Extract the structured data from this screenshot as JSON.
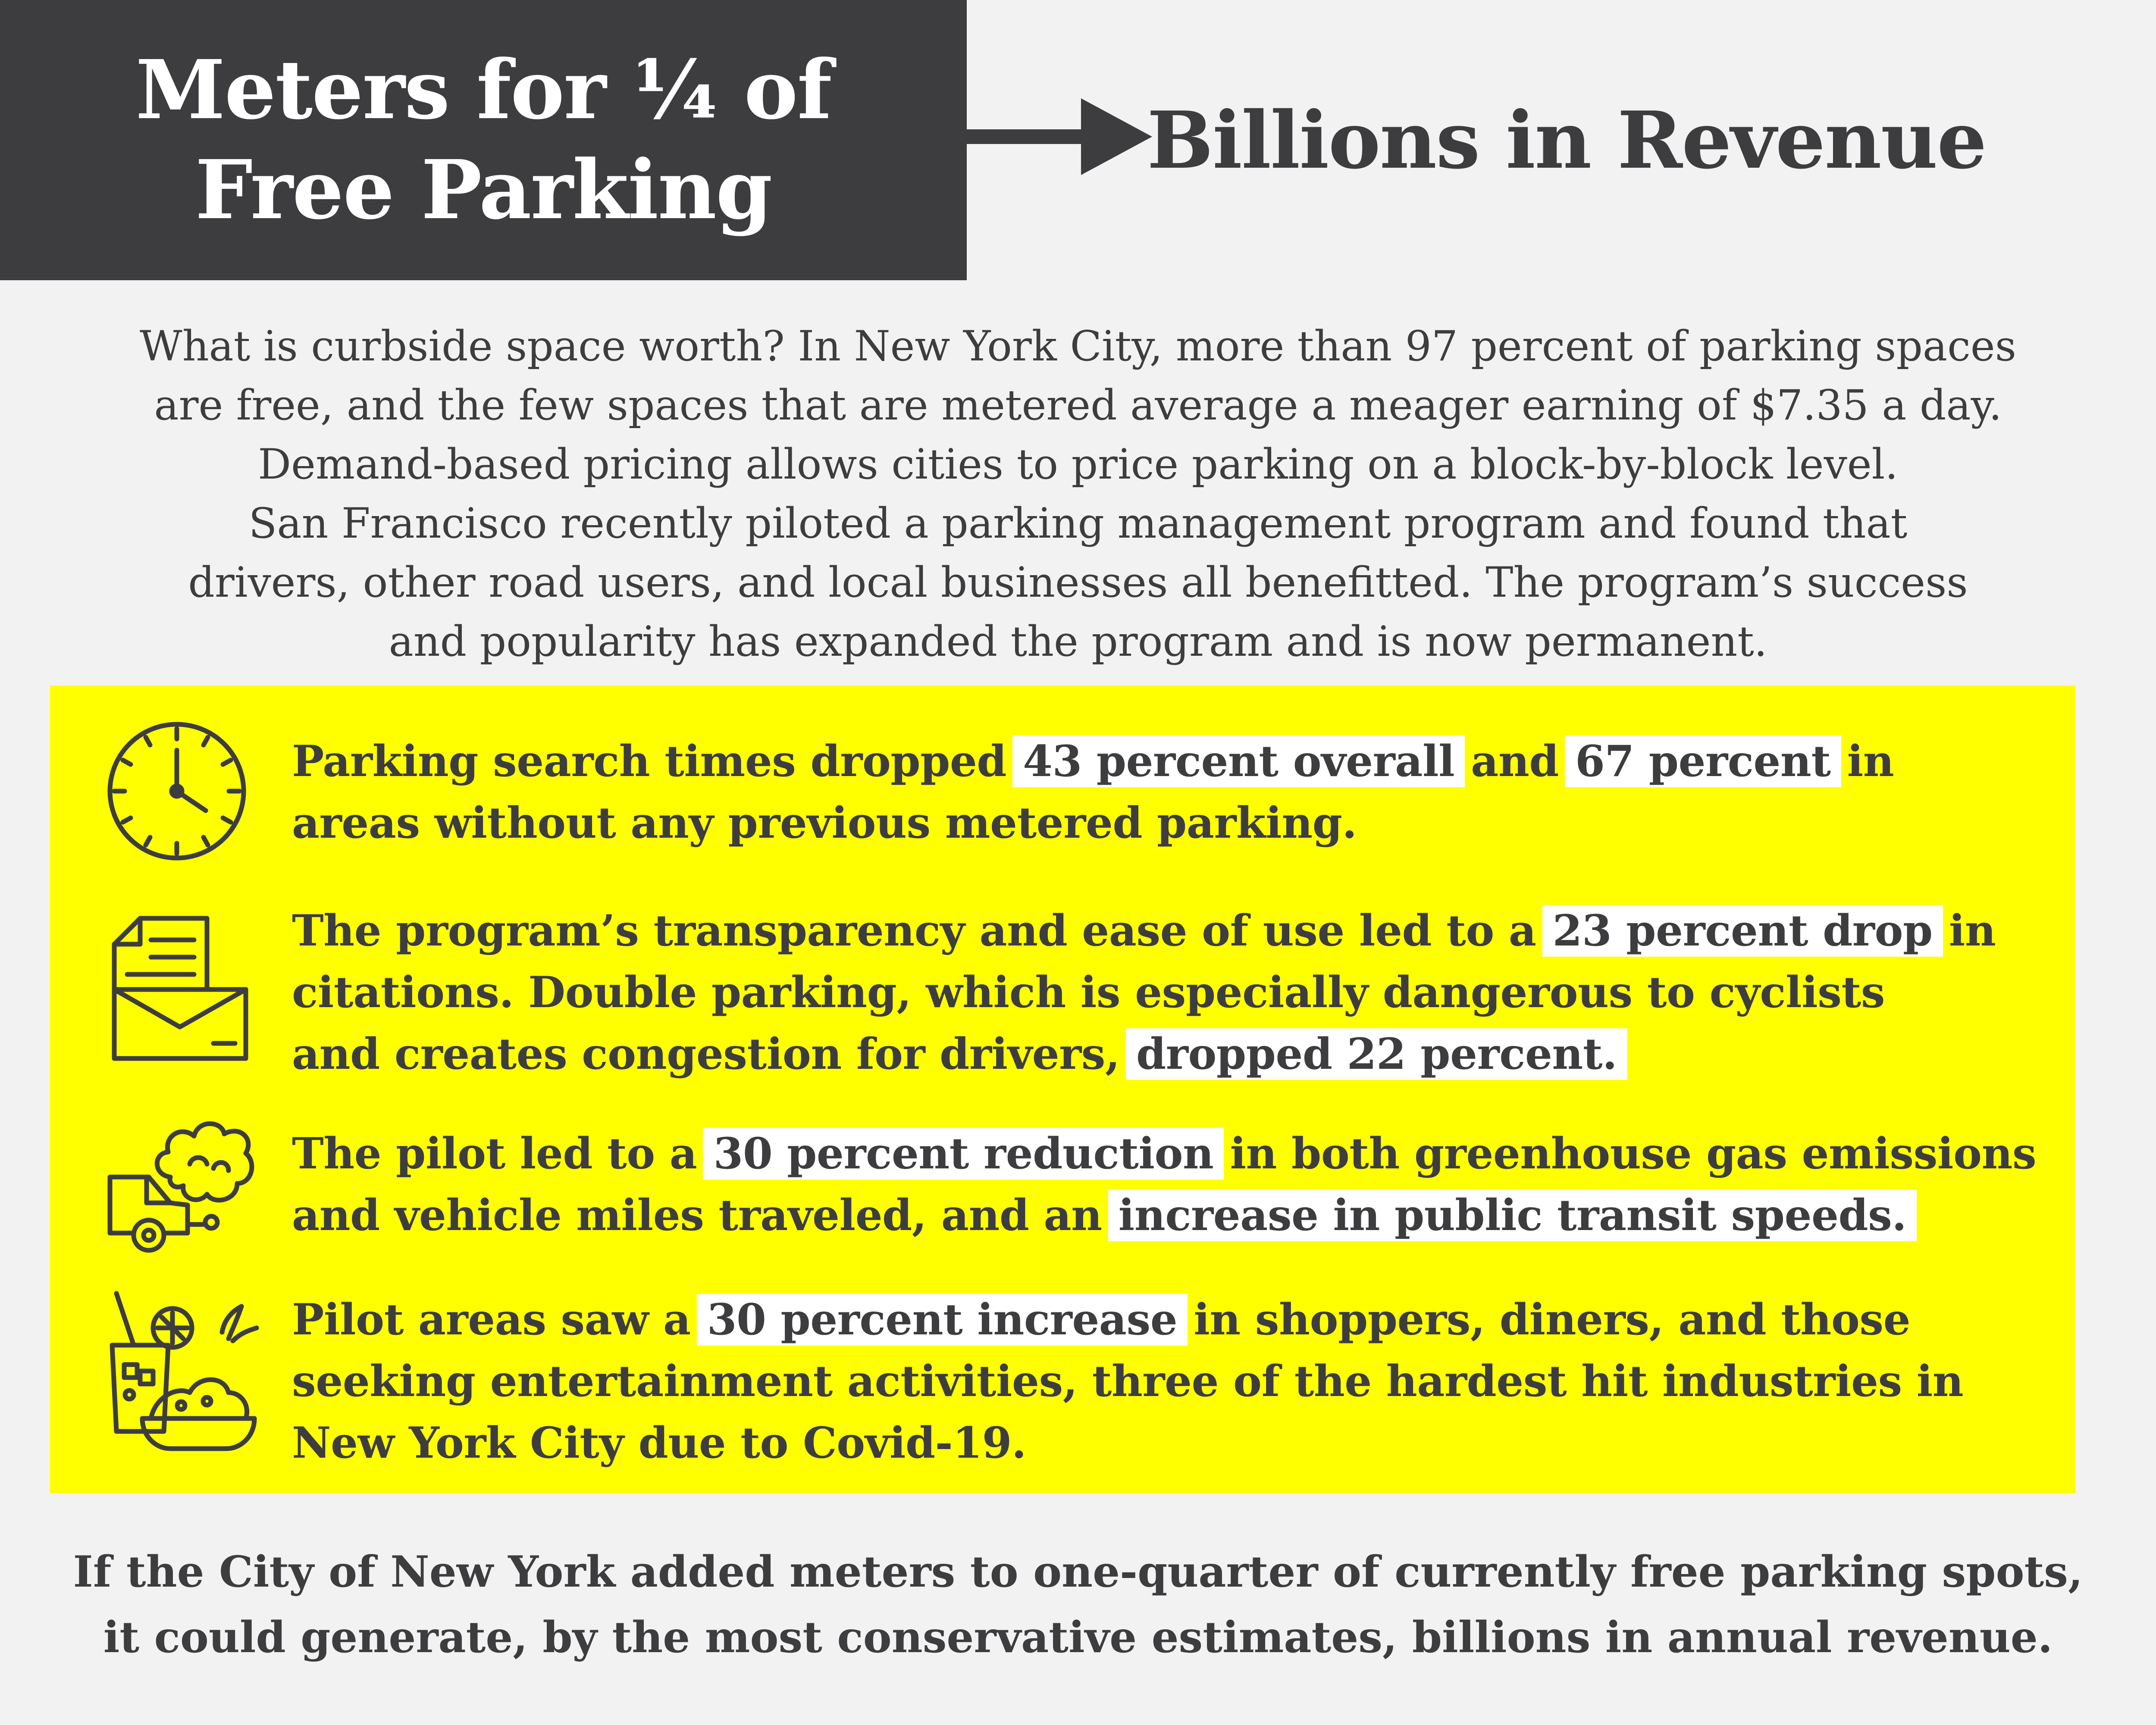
{
  "header": {
    "title_line1": "Meters for ¼ of",
    "title_line2": "Free Parking",
    "result": "Billions in Revenue"
  },
  "intro": {
    "lines": [
      "What is curbside space worth? In New York City, more than 97 percent of parking spaces",
      "are free, and the few spaces that are metered average a meager earning of $7.35 a day.",
      "Demand-based pricing allows cities to price parking on a block-by-block level.",
      "San Francisco recently piloted a parking management program and found that",
      "drivers, other road users, and local businesses all benefitted. The program’s success",
      "and popularity has expanded the program and is now permanent."
    ]
  },
  "findings": {
    "search": {
      "icon": "clock-icon",
      "pre": "Parking search times dropped",
      "hl1": "43 percent overall",
      "mid": "and",
      "hl2": "67 percent",
      "post": "in",
      "line2": "areas without any previous metered parking."
    },
    "citations": {
      "icon": "documents-icon",
      "pre": "The program’s transparency and ease of use led to a",
      "hl1": "23 percent drop",
      "post": "in",
      "line2": "citations. Double parking, which is especially dangerous to cyclists",
      "line3_pre": "and creates congestion for drivers,",
      "hl2": "dropped 22 percent."
    },
    "emissions": {
      "icon": "car-exhaust-icon",
      "pre": "The pilot led to a",
      "hl1": "30 percent reduction",
      "post": "in both greenhouse gas emissions",
      "line2_pre": "and vehicle miles traveled, and an",
      "hl2": "increase in public transit speeds."
    },
    "business": {
      "icon": "food-drink-icon",
      "pre": "Pilot areas saw a",
      "hl1": "30 percent increase",
      "post": "in shoppers, diners, and those",
      "line2": "seeking entertainment activities, three of the hardest hit industries in",
      "line3": "New York City due to Covid-19."
    }
  },
  "footer": {
    "line1": "If the City of New York added meters to one-quarter of currently free parking spots,",
    "line2": "it could generate, by the most conservative estimates, billions in annual revenue."
  }
}
